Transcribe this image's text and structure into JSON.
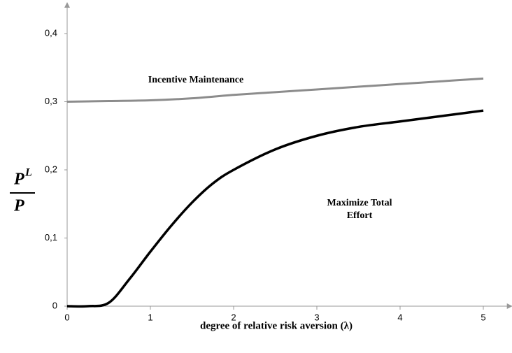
{
  "chart_data": {
    "type": "line",
    "xlabel": "degree of relative risk aversion (λ)",
    "ylabel": {
      "numerator": "P",
      "superscript": "L",
      "denominator": "P"
    },
    "xlim": [
      0,
      5.3
    ],
    "ylim": [
      0,
      0.44
    ],
    "xticks": [
      0,
      1,
      2,
      3,
      4,
      5
    ],
    "yticks": [
      0,
      {
        "value": 0.1,
        "label": "0,1"
      },
      {
        "value": 0.2,
        "label": "0,2"
      },
      {
        "value": 0.3,
        "label": "0,3"
      },
      {
        "value": 0.4,
        "label": "0,4"
      }
    ],
    "series": [
      {
        "name": "Incentive Maintenance",
        "color": "#8c8c8c",
        "x": [
          0,
          0.5,
          1,
          1.5,
          2,
          2.5,
          3,
          3.5,
          4,
          4.5,
          5
        ],
        "values": [
          0.3,
          0.301,
          0.302,
          0.305,
          0.31,
          0.314,
          0.318,
          0.322,
          0.326,
          0.33,
          0.334
        ]
      },
      {
        "name": "Maximize Total Effort",
        "color": "#000000",
        "x": [
          0,
          0.25,
          0.5,
          0.75,
          1,
          1.25,
          1.5,
          1.75,
          2,
          2.5,
          3,
          3.5,
          4,
          4.5,
          5
        ],
        "values": [
          0,
          0,
          0.005,
          0.04,
          0.08,
          0.118,
          0.152,
          0.18,
          0.2,
          0.23,
          0.25,
          0.263,
          0.271,
          0.279,
          0.287
        ]
      }
    ]
  }
}
